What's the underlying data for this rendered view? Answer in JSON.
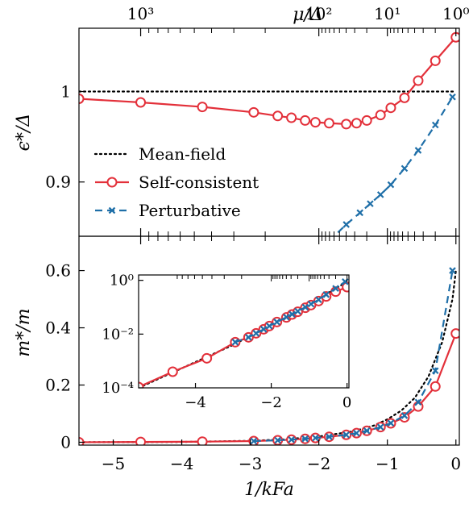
{
  "colors": {
    "mean_field": "#000000",
    "self_consistent": "#e3303a",
    "perturbative": "#1f6fa8"
  },
  "chart_data": [
    {
      "id": "top",
      "type": "line",
      "xlabel": "",
      "ylabel": "ϵ*/Δ",
      "top_axis_label": "μ/Δ",
      "top_axis_ticks": [
        {
          "x": -4.6,
          "label": "10³"
        },
        {
          "x": -2.0,
          "label": "10²"
        },
        {
          "x": -1.0,
          "label": "10¹"
        },
        {
          "x": 0.0,
          "label": "10⁰"
        }
      ],
      "xlim": [
        -5.5,
        0.05
      ],
      "ylim": [
        0.84,
        1.07
      ],
      "yticks": [
        0.9,
        1.0
      ],
      "ytick_labels": [
        "0.9",
        "1"
      ],
      "grid": false,
      "legend_position": "bottom-left",
      "legend": [
        "Mean-field",
        "Self-consistent",
        "Perturbative"
      ],
      "series": [
        {
          "name": "Mean-field",
          "style": "dotted",
          "marker": "none",
          "x": [
            -5.5,
            0.0
          ],
          "y": [
            1.0,
            1.0
          ]
        },
        {
          "name": "Self-consistent",
          "style": "solid",
          "marker": "circle",
          "x": [
            -5.5,
            -4.6,
            -3.7,
            -2.95,
            -2.6,
            -2.4,
            -2.2,
            -2.05,
            -1.85,
            -1.6,
            -1.45,
            -1.3,
            -1.1,
            -0.95,
            -0.75,
            -0.55,
            -0.3,
            0.0
          ],
          "y": [
            0.992,
            0.988,
            0.983,
            0.977,
            0.973,
            0.971,
            0.968,
            0.966,
            0.965,
            0.964,
            0.965,
            0.968,
            0.974,
            0.982,
            0.993,
            1.012,
            1.034,
            1.06
          ]
        },
        {
          "name": "Perturbative",
          "style": "dashed",
          "marker": "x",
          "x": [
            -1.85,
            -1.6,
            -1.4,
            -1.25,
            -1.1,
            -0.95,
            -0.75,
            -0.55,
            -0.3,
            -0.05
          ],
          "y": [
            0.835,
            0.853,
            0.866,
            0.876,
            0.886,
            0.897,
            0.915,
            0.935,
            0.963,
            0.994
          ]
        }
      ]
    },
    {
      "id": "bottom",
      "type": "line",
      "xlabel": "1/kFa",
      "ylabel": "m*/m",
      "xlim": [
        -5.5,
        0.05
      ],
      "xticks": [
        -5,
        -4,
        -3,
        -2,
        -1,
        0
      ],
      "xtick_labels": [
        "−5",
        "−4",
        "−3",
        "−2",
        "−1",
        "0"
      ],
      "ylim": [
        -0.01,
        0.72
      ],
      "yticks": [
        0,
        0.2,
        0.4,
        0.6
      ],
      "ytick_labels": [
        "0",
        "0.2",
        "0.4",
        "0.6"
      ],
      "grid": false,
      "series": [
        {
          "name": "Mean-field",
          "style": "dotted",
          "marker": "none",
          "x": [
            -5.5,
            -4.0,
            -3.0,
            -2.5,
            -2.0,
            -1.5,
            -1.2,
            -1.0,
            -0.8,
            -0.6,
            -0.4,
            -0.2,
            -0.05,
            0.0
          ],
          "y": [
            0.0,
            0.001,
            0.005,
            0.01,
            0.02,
            0.038,
            0.058,
            0.08,
            0.11,
            0.155,
            0.23,
            0.35,
            0.5,
            0.6
          ]
        },
        {
          "name": "Self-consistent",
          "style": "solid",
          "marker": "circle",
          "x": [
            -5.5,
            -4.6,
            -3.7,
            -2.95,
            -2.6,
            -2.4,
            -2.2,
            -2.05,
            -1.85,
            -1.6,
            -1.45,
            -1.3,
            -1.1,
            -0.95,
            -0.75,
            -0.55,
            -0.3,
            0.0
          ],
          "y": [
            0.0,
            0.001,
            0.002,
            0.004,
            0.007,
            0.009,
            0.012,
            0.015,
            0.019,
            0.026,
            0.032,
            0.04,
            0.053,
            0.066,
            0.087,
            0.125,
            0.195,
            0.38
          ]
        },
        {
          "name": "Perturbative",
          "style": "dashed",
          "marker": "x",
          "x": [
            -2.95,
            -2.6,
            -2.4,
            -2.2,
            -2.05,
            -1.85,
            -1.6,
            -1.45,
            -1.3,
            -1.1,
            -0.95,
            -0.75,
            -0.55,
            -0.3,
            -0.05
          ],
          "y": [
            0.004,
            0.007,
            0.009,
            0.012,
            0.015,
            0.019,
            0.026,
            0.032,
            0.04,
            0.053,
            0.067,
            0.093,
            0.14,
            0.25,
            0.6
          ]
        }
      ]
    },
    {
      "id": "inset",
      "type": "line",
      "xlabel": "",
      "ylabel": "",
      "scale_y": "log",
      "xlim": [
        -5.5,
        0.05
      ],
      "xticks": [
        -4,
        -2,
        0
      ],
      "xtick_labels": [
        "−4",
        "−2",
        "0"
      ],
      "ylim_log10": [
        -4,
        0.2
      ],
      "yticks_log10": [
        -4,
        -2,
        0
      ],
      "ytick_labels": [
        "10⁻⁴",
        "10⁻²",
        "10⁰"
      ],
      "series": [
        {
          "name": "Mean-field",
          "style": "dotted",
          "marker": "none",
          "x": [
            -5.5,
            -3.0,
            -1.0,
            0.0
          ],
          "y_log10": [
            -4.0,
            -2.4,
            -0.9,
            -0.05
          ]
        },
        {
          "name": "Self-consistent",
          "style": "solid",
          "marker": "circle",
          "x": [
            -5.5,
            -4.6,
            -3.7,
            -2.95,
            -2.6,
            -2.4,
            -2.2,
            -2.05,
            -1.85,
            -1.6,
            -1.45,
            -1.3,
            -1.1,
            -0.95,
            -0.75,
            -0.55,
            -0.3,
            0.0
          ],
          "y_log10": [
            -3.97,
            -3.4,
            -2.9,
            -2.3,
            -2.12,
            -1.97,
            -1.82,
            -1.7,
            -1.55,
            -1.38,
            -1.27,
            -1.17,
            -1.02,
            -0.92,
            -0.77,
            -0.6,
            -0.42,
            -0.25
          ]
        },
        {
          "name": "Perturbative",
          "style": "dashed",
          "marker": "x",
          "x": [
            -2.95,
            -2.6,
            -2.4,
            -2.2,
            -2.05,
            -1.85,
            -1.6,
            -1.45,
            -1.3,
            -1.1,
            -0.95,
            -0.75,
            -0.55,
            -0.3,
            -0.05
          ],
          "y_log10": [
            -2.3,
            -2.12,
            -1.97,
            -1.82,
            -1.7,
            -1.55,
            -1.37,
            -1.26,
            -1.15,
            -1.0,
            -0.88,
            -0.72,
            -0.53,
            -0.3,
            -0.05
          ]
        }
      ]
    }
  ]
}
